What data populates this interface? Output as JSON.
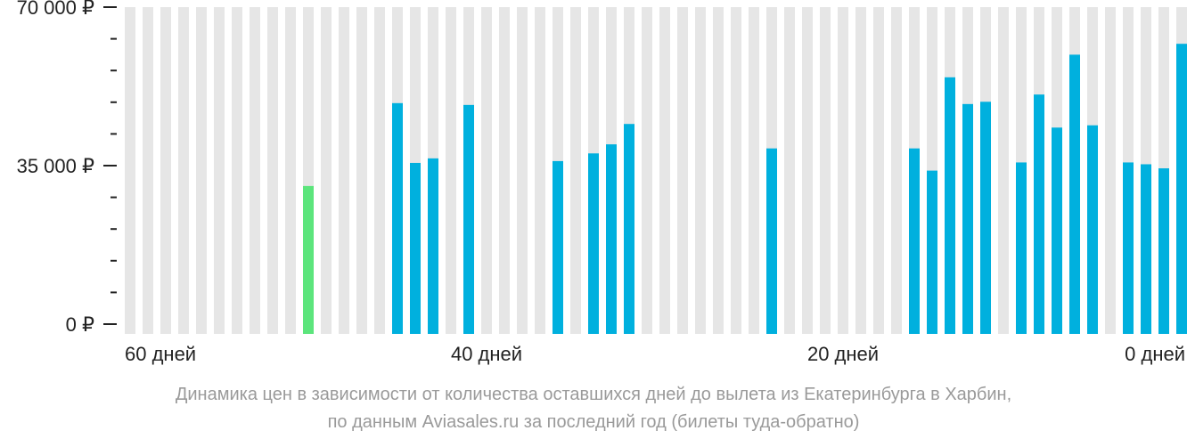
{
  "chart_data": {
    "type": "bar",
    "title": "",
    "ylim": [
      0,
      70000
    ],
    "y_ticks": [
      {
        "value": 0,
        "label": "0 ₽"
      },
      {
        "value": 35000,
        "label": "35 000 ₽"
      },
      {
        "value": 70000,
        "label": "70 000 ₽"
      }
    ],
    "x_ticks": [
      {
        "day": 60,
        "label": "60 дней"
      },
      {
        "day": 40,
        "label": "40 дней"
      },
      {
        "day": 20,
        "label": "20 дней"
      },
      {
        "day": 0,
        "label": "0 дней"
      }
    ],
    "days": [
      60,
      59,
      58,
      57,
      56,
      55,
      54,
      53,
      52,
      51,
      50,
      49,
      48,
      47,
      46,
      45,
      44,
      43,
      42,
      41,
      40,
      39,
      38,
      37,
      36,
      35,
      34,
      33,
      32,
      31,
      30,
      29,
      28,
      27,
      26,
      25,
      24,
      23,
      22,
      21,
      20,
      19,
      18,
      17,
      16,
      15,
      14,
      13,
      12,
      11,
      10,
      9,
      8,
      7,
      6,
      5,
      4,
      3,
      2,
      1,
      0
    ],
    "values": [
      null,
      null,
      null,
      null,
      null,
      null,
      null,
      null,
      null,
      null,
      30500,
      null,
      null,
      null,
      null,
      48800,
      null,
      36600,
      null,
      48400,
      null,
      null,
      null,
      null,
      36000,
      null,
      37700,
      39700,
      44200,
      null,
      null,
      null,
      null,
      null,
      null,
      null,
      null,
      null,
      null,
      null,
      null,
      null,
      null,
      null,
      null,
      null,
      null,
      null,
      null,
      null,
      null,
      null,
      null,
      null,
      null,
      null,
      null,
      null,
      null,
      null,
      null
    ],
    "cheapest_day": 50,
    "colors": {
      "bar": "#00b0de",
      "cheapest": "#5ce57c",
      "background_bar": "#e6e6e6"
    }
  },
  "caption": {
    "line1": "Динамика цен в зависимости от количества оставшихся дней до вылета из Екатеринбурга в Харбин,",
    "line2": "по данным Aviasales.ru за последний год (билеты туда-обратно)"
  }
}
